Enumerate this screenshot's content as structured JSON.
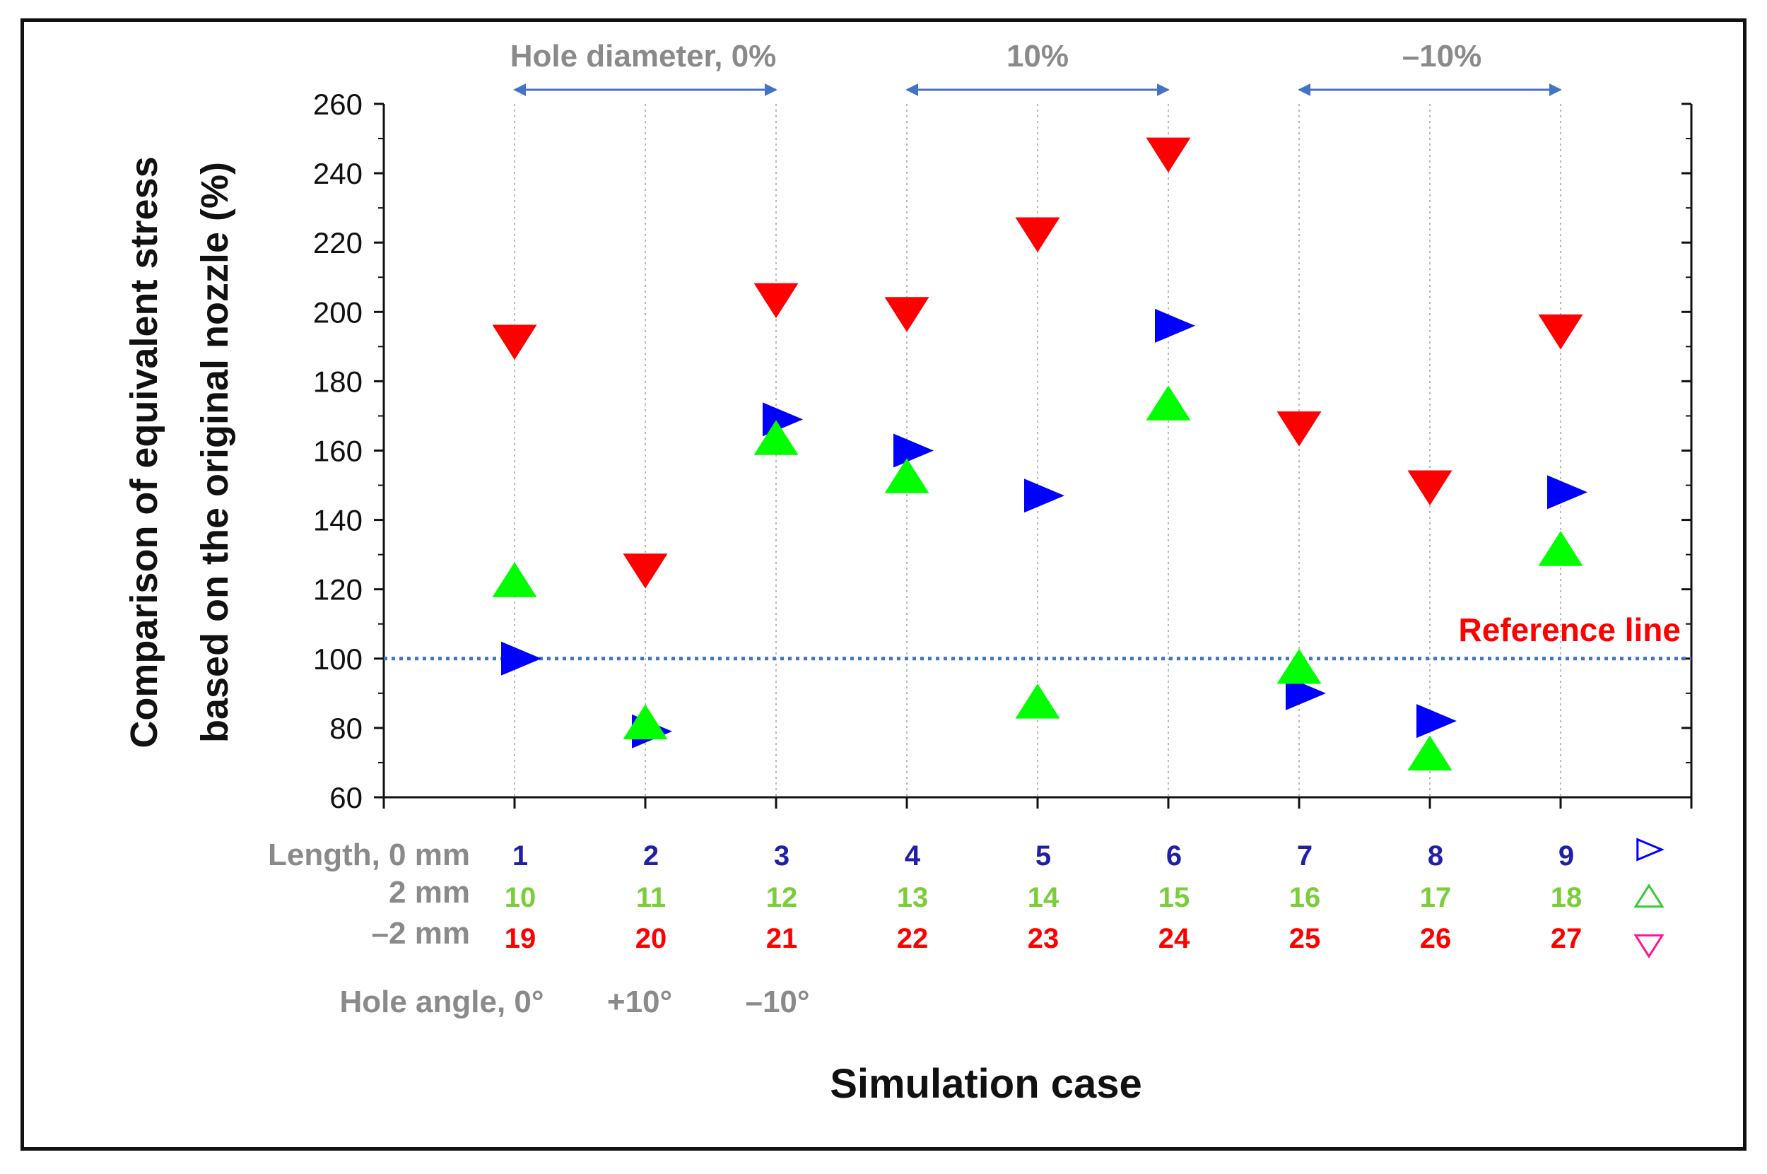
{
  "chart_data": {
    "type": "scatter",
    "title": "",
    "xlabel": "Simulation case",
    "ylabel": [
      "Comparison of equivalent stress",
      "based on the original nozzle (%)"
    ],
    "xlim": [
      0,
      10
    ],
    "ylim": [
      60,
      260
    ],
    "yticks": [
      60,
      80,
      100,
      120,
      140,
      160,
      180,
      200,
      220,
      240,
      260
    ],
    "grid": "vertical dotted at each case",
    "reference_line": {
      "value": 100,
      "label": "Reference line",
      "color": "#4472c4",
      "label_color": "#ff0000"
    },
    "hole_diameter_groups": [
      {
        "label": "Hole diameter, 0%",
        "from": 1,
        "to": 3
      },
      {
        "label": "10%",
        "from": 4,
        "to": 6
      },
      {
        "label": "–10%",
        "from": 7,
        "to": 9
      }
    ],
    "hole_angle_labels": [
      "Hole angle, 0°",
      "+10°",
      "–10°"
    ],
    "series": [
      {
        "name": "Length, 0 mm",
        "marker": "triangle-right",
        "color": "#0000ff",
        "label_color": "#1f1fa8",
        "cases": [
          "1",
          "2",
          "3",
          "4",
          "5",
          "6",
          "7",
          "8",
          "9"
        ],
        "x": [
          1,
          2,
          3,
          4,
          5,
          6,
          7,
          8,
          9
        ],
        "values": [
          100,
          79,
          169,
          160,
          147,
          196,
          90,
          82,
          148
        ]
      },
      {
        "name": "2 mm",
        "marker": "triangle-up",
        "color": "#00ff00",
        "label_color": "#7ccd3c",
        "cases": [
          "10",
          "11",
          "12",
          "13",
          "14",
          "15",
          "16",
          "17",
          "18"
        ],
        "x": [
          1,
          2,
          3,
          4,
          5,
          6,
          7,
          8,
          9
        ],
        "values": [
          122,
          81,
          163,
          152,
          87,
          173,
          97,
          72,
          131
        ]
      },
      {
        "name": "–2 mm",
        "marker": "triangle-down",
        "color": "#ff0000",
        "label_color": "#ff0000",
        "cases": [
          "19",
          "20",
          "21",
          "22",
          "23",
          "24",
          "25",
          "26",
          "27"
        ],
        "x": [
          1,
          2,
          3,
          4,
          5,
          6,
          7,
          8,
          9
        ],
        "values": [
          192,
          126,
          204,
          200,
          223,
          246,
          167,
          150,
          195
        ]
      }
    ],
    "legend": [
      {
        "series": "Length, 0 mm",
        "marker": "triangle-right",
        "color": "#0000ff"
      },
      {
        "series": "2 mm",
        "marker": "triangle-up",
        "color": "#33cc33"
      },
      {
        "series": "–2 mm",
        "marker": "triangle-down",
        "color": "#ff1493"
      }
    ],
    "arrow_color": "#4472c4"
  }
}
